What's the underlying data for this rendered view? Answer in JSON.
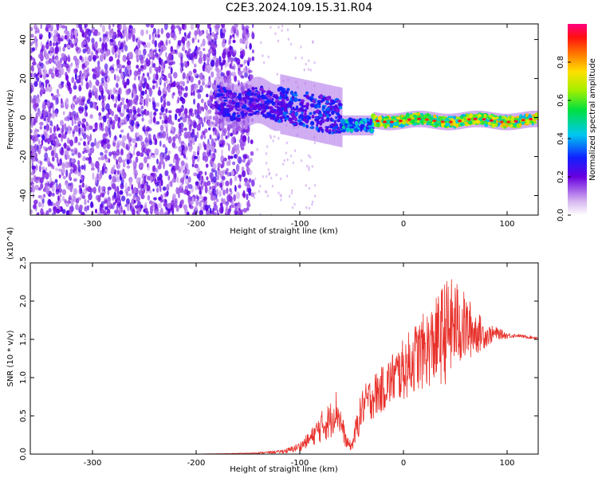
{
  "title": "C2E3.2024.109.15.31.R04",
  "colors": {
    "spectrogram_low": "#7b2ee0",
    "spectrogram_mid": "#00d4c8",
    "spectrogram_high": "#ff2020",
    "snr_line": "#e8302a"
  },
  "chart_data": [
    {
      "type": "heatmap",
      "description_tag": "spectrogram",
      "xlabel": "Height of straight line (km)",
      "ylabel": "Frequency (Hz)",
      "xlim": [
        -360,
        130
      ],
      "ylim": [
        -50,
        48
      ],
      "xticks": [
        -300,
        -200,
        -100,
        0,
        100
      ],
      "yticks": [
        -40,
        -20,
        0,
        20,
        40
      ],
      "colorbar": {
        "label": "Normalized spectral amplitude",
        "range": [
          0.0,
          1.0
        ],
        "ticks": [
          0.0,
          0.2,
          0.4,
          0.6,
          0.8
        ],
        "tick_labels": [
          "0.0",
          "0.2",
          "0.4",
          "0.6",
          "0.8"
        ]
      },
      "regions": [
        {
          "x_range": [
            -360,
            -145
          ],
          "freq_range": [
            -50,
            48
          ],
          "amplitude": 0.05
        },
        {
          "x_range": [
            -180,
            -100
          ],
          "freq_center": 7,
          "freq_width": 14,
          "amplitude": 0.25
        },
        {
          "x_range": [
            -100,
            -60
          ],
          "freq_center": 0,
          "freq_width": 18,
          "amplitude": 0.3
        },
        {
          "x_range": [
            -60,
            -30
          ],
          "freq_center": -4,
          "freq_width": 5,
          "amplitude": 0.4
        },
        {
          "x_range": [
            -30,
            130
          ],
          "freq_center": -1,
          "freq_width": 5,
          "amplitude": 0.75
        }
      ]
    },
    {
      "type": "line",
      "xlabel": "Height of straight line (km)",
      "ylabel": "SNR (10 * v/v)",
      "y_multiplier": "(x10^4)",
      "xlim": [
        -360,
        130
      ],
      "ylim": [
        0,
        2.5
      ],
      "xticks": [
        -300,
        -200,
        -100,
        0,
        100
      ],
      "yticks": [
        0.0,
        0.5,
        1.0,
        1.5,
        2.0,
        2.5
      ],
      "ytick_labels": [
        "0.0",
        "0.5",
        "1.0",
        "1.5",
        "2.0",
        "2.5"
      ],
      "series": [
        {
          "x": [
            -360,
            -300,
            -200,
            -150,
            -120,
            -110,
            -100,
            -90,
            -80,
            -70,
            -65,
            -60,
            -55,
            -50,
            -45,
            -40,
            -35,
            -30,
            -20,
            -10,
            0,
            10,
            20,
            30,
            40,
            50,
            60,
            70,
            80,
            90,
            100,
            110,
            120,
            130
          ],
          "y": [
            0.0,
            0.0,
            0.0,
            0.01,
            0.03,
            0.05,
            0.1,
            0.2,
            0.35,
            0.45,
            0.6,
            0.4,
            0.15,
            0.1,
            0.35,
            0.6,
            0.7,
            0.75,
            0.85,
            1.0,
            1.1,
            1.25,
            1.35,
            1.45,
            1.6,
            1.7,
            1.65,
            1.6,
            1.55,
            1.58,
            1.55,
            1.55,
            1.53,
            1.52
          ],
          "spread": [
            0.0,
            0.0,
            0.0,
            0.005,
            0.02,
            0.04,
            0.06,
            0.1,
            0.2,
            0.25,
            0.25,
            0.2,
            0.08,
            0.06,
            0.2,
            0.25,
            0.25,
            0.3,
            0.3,
            0.35,
            0.4,
            0.45,
            0.5,
            0.55,
            0.7,
            0.6,
            0.45,
            0.3,
            0.15,
            0.08,
            0.04,
            0.02,
            0.02,
            0.02
          ]
        }
      ]
    }
  ]
}
